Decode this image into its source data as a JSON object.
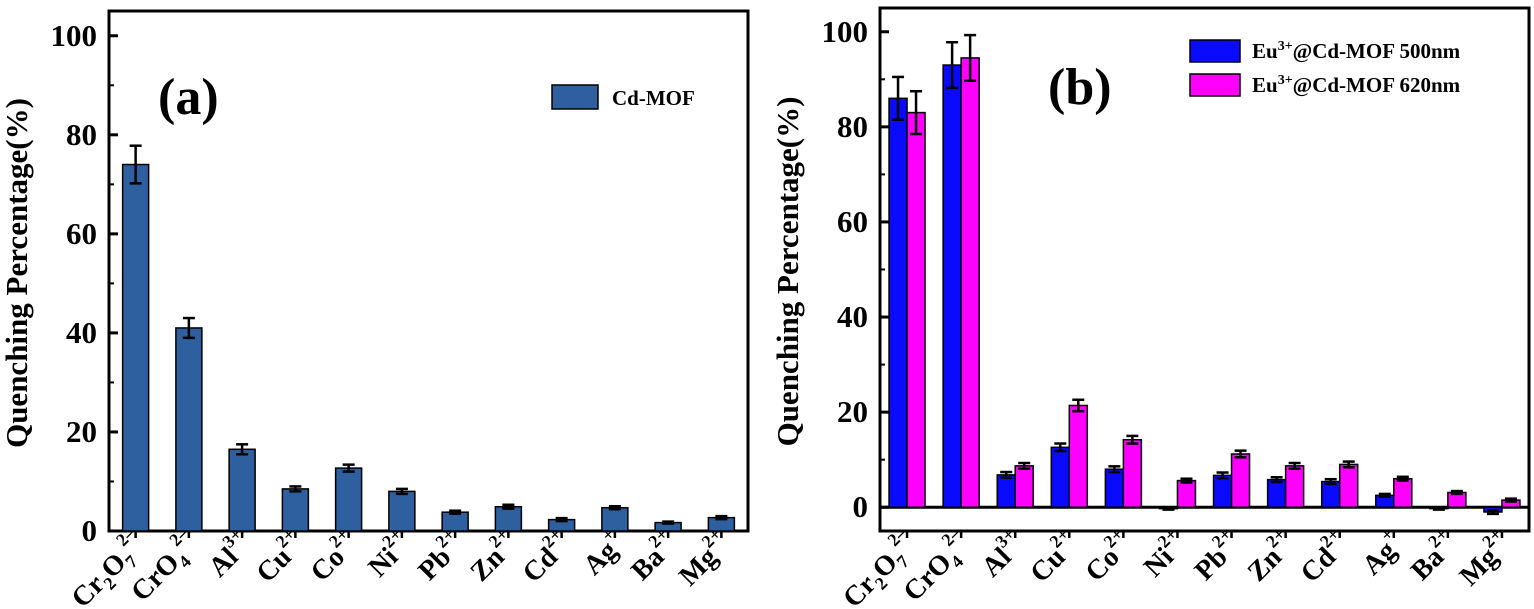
{
  "chart_data": [
    {
      "type": "bar",
      "panel_label": "(a)",
      "ylabel": "Quenching Percentage(%)",
      "ylim": [
        0,
        105
      ],
      "yticks": [
        "0",
        "20",
        "40",
        "60",
        "80",
        "100"
      ],
      "categories": [
        {
          "base": "Cr",
          "sub1": "2",
          "mid": "O",
          "sub2": "7",
          "sup": "2–"
        },
        {
          "base": "CrO",
          "sub1": "4",
          "sup": "2–"
        },
        {
          "base": "Al",
          "sup": "3+"
        },
        {
          "base": "Cu",
          "sup": "2+"
        },
        {
          "base": "Co",
          "sup": "2+"
        },
        {
          "base": "Ni",
          "sup": "2+"
        },
        {
          "base": "Pb",
          "sup": "2+"
        },
        {
          "base": "Zn",
          "sup": "2+"
        },
        {
          "base": "Cd",
          "sup": "2+"
        },
        {
          "base": "Ag",
          "sup": "+"
        },
        {
          "base": "Ba",
          "sup": "2+"
        },
        {
          "base": "Mg",
          "sup": "2+"
        }
      ],
      "series": [
        {
          "name": "Cd-MOF",
          "color": "#2e5f9e",
          "values": [
            74.0,
            41.0,
            16.5,
            8.5,
            12.7,
            8.0,
            3.8,
            4.9,
            2.3,
            4.7,
            1.7,
            2.7
          ],
          "errors": [
            3.8,
            2.0,
            1.0,
            0.5,
            0.7,
            0.5,
            0.3,
            0.4,
            0.3,
            0.3,
            0.2,
            0.3
          ]
        }
      ],
      "legend": "top-right"
    },
    {
      "type": "bar",
      "panel_label": "(b)",
      "ylabel": "Quenching Percentage(%)",
      "ylim": [
        -5,
        105
      ],
      "yticks": [
        "0",
        "20",
        "40",
        "60",
        "80",
        "100"
      ],
      "categories": [
        {
          "base": "Cr",
          "sub1": "2",
          "mid": "O",
          "sub2": "7",
          "sup": "2–"
        },
        {
          "base": "CrO",
          "sub1": "4",
          "sup": "2–"
        },
        {
          "base": "Al",
          "sup": "3+"
        },
        {
          "base": "Cu",
          "sup": "2+"
        },
        {
          "base": "Co",
          "sup": "2+"
        },
        {
          "base": "Ni",
          "sup": "2+"
        },
        {
          "base": "Pb",
          "sup": "2+"
        },
        {
          "base": "Zn",
          "sup": "2+"
        },
        {
          "base": "Cd",
          "sup": "2+"
        },
        {
          "base": "Ag",
          "sup": "+"
        },
        {
          "base": "Ba",
          "sup": "2+"
        },
        {
          "base": "Mg",
          "sup": "2+"
        }
      ],
      "series": [
        {
          "name": {
            "base": "Eu",
            "sup": "3+",
            "rest": "@Cd-MOF 500nm"
          },
          "color": "#0a0aff",
          "values": [
            86.0,
            93.0,
            6.8,
            12.6,
            8.0,
            -0.3,
            6.7,
            5.8,
            5.4,
            2.5,
            -0.3,
            -1.0
          ],
          "errors": [
            4.5,
            4.8,
            0.6,
            0.8,
            0.6,
            0.2,
            0.6,
            0.5,
            0.5,
            0.3,
            0.2,
            0.4
          ]
        },
        {
          "name": {
            "base": "Eu",
            "sup": "3+",
            "rest": "@Cd-MOF 620nm"
          },
          "color": "#ff00ff",
          "values": [
            83.0,
            94.5,
            8.7,
            21.4,
            14.2,
            5.6,
            11.2,
            8.7,
            9.0,
            6.0,
            3.1,
            1.5
          ],
          "errors": [
            4.5,
            4.8,
            0.6,
            1.2,
            0.8,
            0.4,
            0.7,
            0.6,
            0.6,
            0.4,
            0.3,
            0.3
          ]
        }
      ],
      "zero_line": true,
      "legend": "top-right"
    }
  ]
}
